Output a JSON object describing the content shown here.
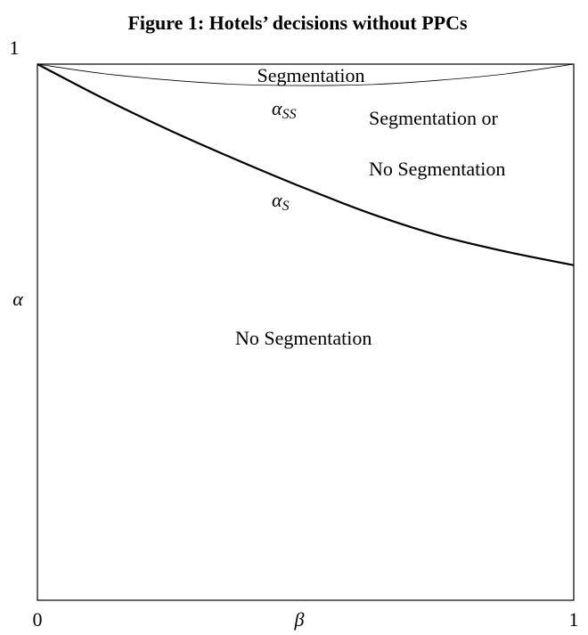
{
  "chart_data": {
    "type": "line",
    "title": "Figure 1: Hotels’ decisions without PPCs",
    "xlabel": "β",
    "ylabel": "α",
    "x": [
      0,
      0.125,
      0.25,
      0.375,
      0.5,
      0.625,
      0.75,
      0.875,
      1
    ],
    "series": [
      {
        "color": "#000000",
        "label": {
          "base": "α",
          "sub": "SS"
        },
        "values": [
          1,
          0.982,
          0.97,
          0.962,
          0.96,
          0.962,
          0.97,
          0.982,
          1
        ]
      },
      {
        "color": "#000000",
        "label": {
          "base": "α",
          "sub": "S"
        },
        "values": [
          1,
          0.935,
          0.875,
          0.82,
          0.768,
          0.72,
          0.68,
          0.65,
          0.625
        ]
      }
    ],
    "annotations": [
      "Segmentation",
      "Segmentation or",
      "No Segmentation",
      "No Segmentation"
    ],
    "xlim": [
      0,
      1
    ],
    "ylim": [
      0,
      1
    ],
    "xticks": [
      0,
      1
    ],
    "yticks": [
      1
    ],
    "grid": false
  }
}
